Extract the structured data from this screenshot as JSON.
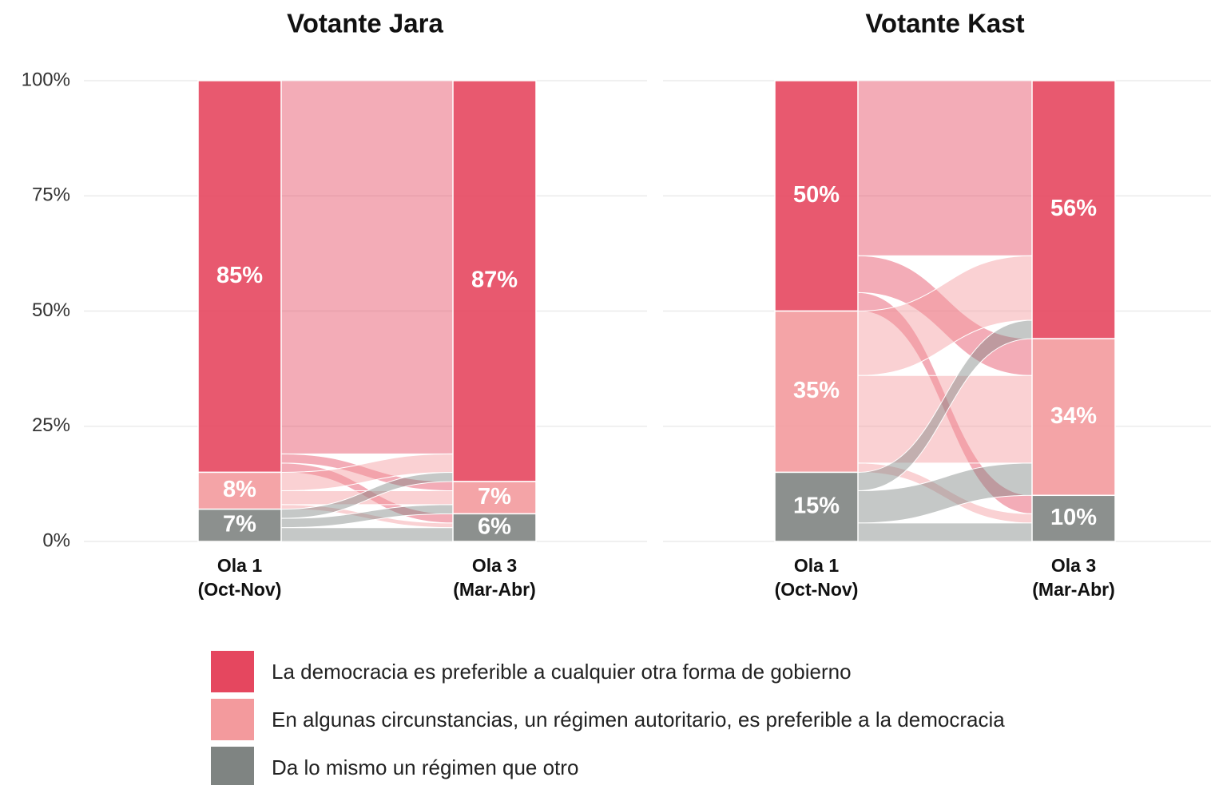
{
  "legend": [
    {
      "name": "La democracia es preferible a cualquier otra forma de gobierno",
      "color": "#e5475f"
    },
    {
      "name": "En algunas circunstancias, un régimen autoritario, es preferible a la democracia",
      "color": "#f39a9d"
    },
    {
      "name": "Da lo mismo un régimen que otro",
      "color": "#7f8482"
    }
  ],
  "chart_data": [
    {
      "type": "alluvial",
      "title": "Votante Jara",
      "categories": [
        "Ola 1",
        "Ola 3"
      ],
      "category_sublabels": [
        "(Oct-Nov)",
        "(Mar-Abr)"
      ],
      "series": [
        {
          "values": [
            85,
            87
          ],
          "value_labels": [
            "85%",
            "87%"
          ]
        },
        {
          "values": [
            8,
            7
          ],
          "value_labels": [
            "8%",
            "7%"
          ]
        },
        {
          "values": [
            7,
            6
          ],
          "value_labels": [
            "7%",
            "6%"
          ]
        }
      ],
      "flows": [
        [
          81,
          2,
          2
        ],
        [
          4,
          3,
          1
        ],
        [
          2,
          2,
          3
        ]
      ],
      "ylim": [
        0,
        100
      ],
      "yticks": [
        {
          "value": 0,
          "label": "0%"
        },
        {
          "value": 25,
          "label": "25%"
        },
        {
          "value": 50,
          "label": "50%"
        },
        {
          "value": 75,
          "label": "75%"
        },
        {
          "value": 100,
          "label": "100%"
        }
      ],
      "grid": true
    },
    {
      "type": "alluvial",
      "title": "Votante Kast",
      "categories": [
        "Ola 1",
        "Ola 3"
      ],
      "category_sublabels": [
        "(Oct-Nov)",
        "(Mar-Abr)"
      ],
      "series": [
        {
          "values": [
            50,
            56
          ],
          "value_labels": [
            "50%",
            "56%"
          ]
        },
        {
          "values": [
            35,
            34
          ],
          "value_labels": [
            "35%",
            "34%"
          ]
        },
        {
          "values": [
            15,
            10
          ],
          "value_labels": [
            "15%",
            "10%"
          ]
        }
      ],
      "flows": [
        [
          38,
          8,
          4
        ],
        [
          14,
          19,
          2
        ],
        [
          4,
          7,
          4
        ]
      ],
      "ylim": [
        0,
        100
      ],
      "yticks": [
        0,
        25,
        50,
        75,
        100
      ],
      "grid": true
    }
  ]
}
